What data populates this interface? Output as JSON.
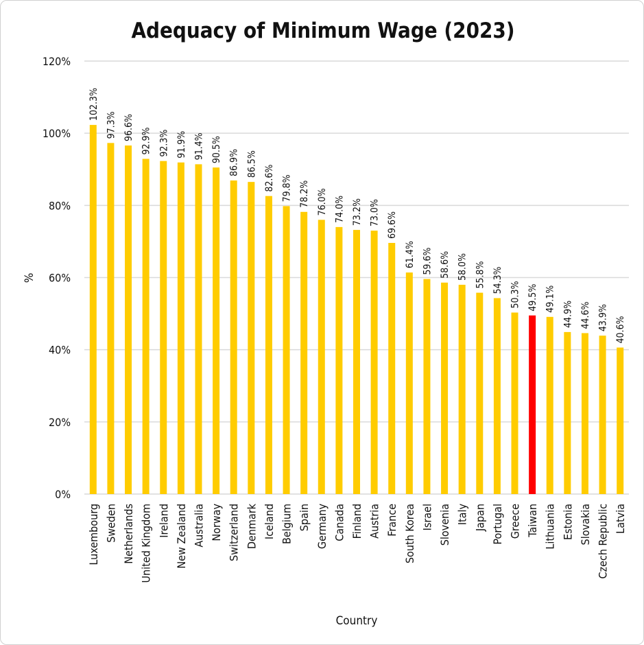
{
  "chart_data": {
    "type": "bar",
    "title": "Adequacy of Minimum Wage (2023)",
    "xlabel": "Country",
    "ylabel": "%",
    "ylim": [
      0,
      120
    ],
    "yticks": [
      "0%",
      "20%",
      "40%",
      "60%",
      "80%",
      "100%",
      "120%"
    ],
    "grid": true,
    "categories": [
      "Luxembourg",
      "Sweden",
      "Netherlands",
      "United Kingdom",
      "Ireland",
      "New Zealand",
      "Australia",
      "Norway",
      "Switzerland",
      "Denmark",
      "Iceland",
      "Belgium",
      "Spain",
      "Germany",
      "Canada",
      "Finland",
      "Austria",
      "France",
      "South Korea",
      "Israel",
      "Slovenia",
      "Italy",
      "Japan",
      "Portugal",
      "Greece",
      "Taiwan",
      "Lithuania",
      "Estonia",
      "Slovakia",
      "Czech Republic",
      "Latvia"
    ],
    "values": [
      102.3,
      97.3,
      96.6,
      92.9,
      92.3,
      91.9,
      91.4,
      90.5,
      86.9,
      86.5,
      82.6,
      79.8,
      78.2,
      76.0,
      74.0,
      73.2,
      73.0,
      69.6,
      61.4,
      59.6,
      58.6,
      58.0,
      55.8,
      54.3,
      50.3,
      49.5,
      49.1,
      44.9,
      44.6,
      43.9,
      40.6
    ],
    "data_labels": [
      "102.3%",
      "97.3%",
      "96.6%",
      "92.9%",
      "92.3%",
      "91.9%",
      "91.4%",
      "90.5%",
      "86.9%",
      "86.5%",
      "82.6%",
      "79.8%",
      "78.2%",
      "76.0%",
      "74.0%",
      "73.2%",
      "73.0%",
      "69.6%",
      "61.4%",
      "59.6%",
      "58.6%",
      "58.0%",
      "55.8%",
      "54.3%",
      "50.3%",
      "49.5%",
      "49.1%",
      "44.9%",
      "44.6%",
      "43.9%",
      "40.6%"
    ],
    "highlight": "Taiwan",
    "colors": {
      "bar": "#FFCC00",
      "highlight": "#FF0000",
      "grid": "#D9D9D9"
    }
  }
}
